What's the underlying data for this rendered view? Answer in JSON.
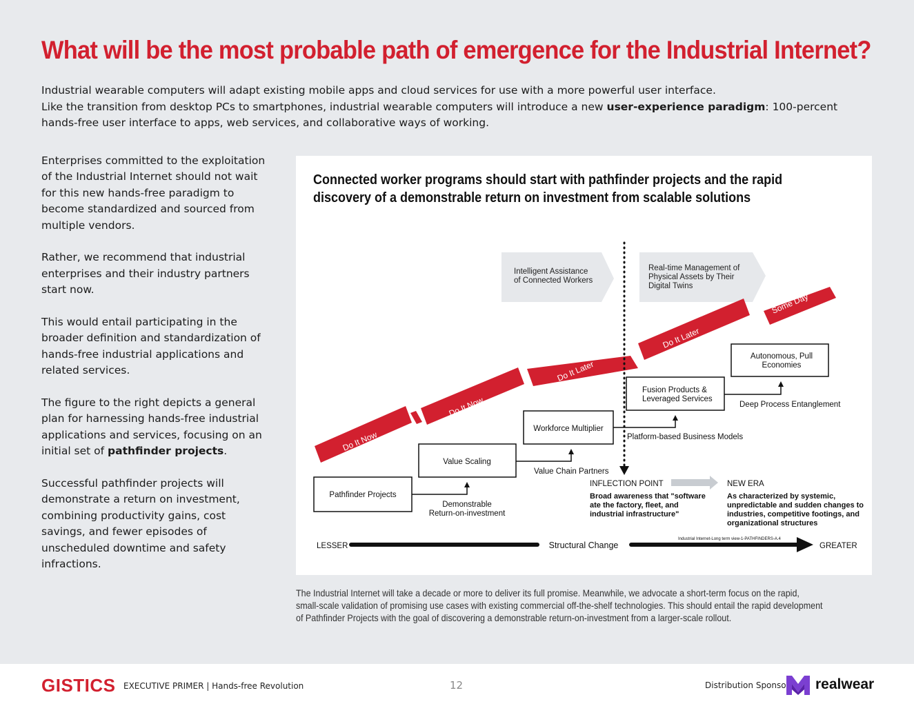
{
  "header": {
    "title": "What will be the most probable path of emergence for the Industrial Internet?",
    "intro_line1": "Industrial wearable computers will adapt existing mobile apps and cloud services for use with a more powerful user interface.",
    "intro_line2_pre": "Like the transition from desktop PCs to smartphones, industrial wearable computers will introduce a new ",
    "intro_line2_bold": "user-experience paradigm",
    "intro_line2_post": ": 100-percent hands-free user interface to apps, web services, and collaborative ways of working."
  },
  "body": {
    "p1": "Enterprises committed to the exploitation of the Industrial Internet should not wait for this new hands-free paradigm to become standardized and sourced from multiple vendors.",
    "p2": "Rather, we recommend that industrial enterprises and their industry partners start now.",
    "p3": "This would entail participating in the broader definition and standardization of hands-free industrial applications and related services.",
    "p4_pre": "The figure to the right depicts a general plan for harnessing hands-free industrial applications and services, focusing on an initial set of ",
    "p4_bold": "pathfinder projects",
    "p4_post": ".",
    "p5": "Successful pathfinder projects will demonstrate a return on investment, combining productivity gains, cost savings, and fewer episodes of unscheduled downtime and safety infractions."
  },
  "figure": {
    "title": "Connected worker programs should start with pathfinder projects and the rapid discovery of a demonstrable return on investment from scalable solutions",
    "arrow1_line1": "Intelligent Assistance",
    "arrow1_line2": "of Connected Workers",
    "arrow2_line1": "Real-time Management of",
    "arrow2_line2": "Physical Assets by Their",
    "arrow2_line3": "Digital Twins",
    "ribbon": [
      "Do It Now",
      "Do It Now",
      "Do It Later",
      "Do It Later",
      "Some Day"
    ],
    "step1": "Pathfinder Projects",
    "step2": "Value Scaling",
    "step3": "Workforce Multiplier",
    "step4_line1": "Fusion Products &",
    "step4_line2": "Leveraged Services",
    "step5_line1": "Autonomous, Pull",
    "step5_line2": "Economies",
    "conn1_line1": "Demonstrable",
    "conn1_line2": "Return-on-investment",
    "conn2": "Value Chain Partners",
    "conn3": "Platform-based Business Models",
    "conn4": "Deep Process Entanglement",
    "inflection_head": "INFLECTION POINT",
    "inflection_line1": "Broad awareness that \"software",
    "inflection_line2": "ate the factory, fleet, and",
    "inflection_line3": "industrial infrastructure\"",
    "newera_head": "NEW ERA",
    "newera_line1": "As characterized by systemic,",
    "newera_line2": "unpredictable and sudden changes to",
    "newera_line3": "industries, competitive footings, and",
    "newera_line4": "organizational structures",
    "ref": "Industrial Internet-Long term view-1-PATHFINDERS-A.4",
    "axis_left": "LESSER",
    "axis_mid": "Structural Change",
    "axis_right": "GREATER"
  },
  "caption": "The Industrial Internet will take a decade or more to deliver its full promise. Meanwhile, we advocate a short-term focus on the rapid, small-scale validation of promising use cases with existing commercial off-the-shelf technologies. This should entail the rapid development of Pathfinder Projects with the goal of discovering a demonstrable return-on-investment from a larger-scale rollout.",
  "footer": {
    "brand": "GISTICS",
    "primer": "EXECUTIVE PRIMER  |  Hands-free Revolution",
    "page": "12",
    "sponsor": "Distribution Sponsor",
    "sponsor_name": "realwear",
    "sponsor_icon": "realwear-logo-icon"
  },
  "colors": {
    "accent_red": "#d2202f",
    "arrow_gray": "#e6e8eb",
    "background": "#e8eaed"
  }
}
